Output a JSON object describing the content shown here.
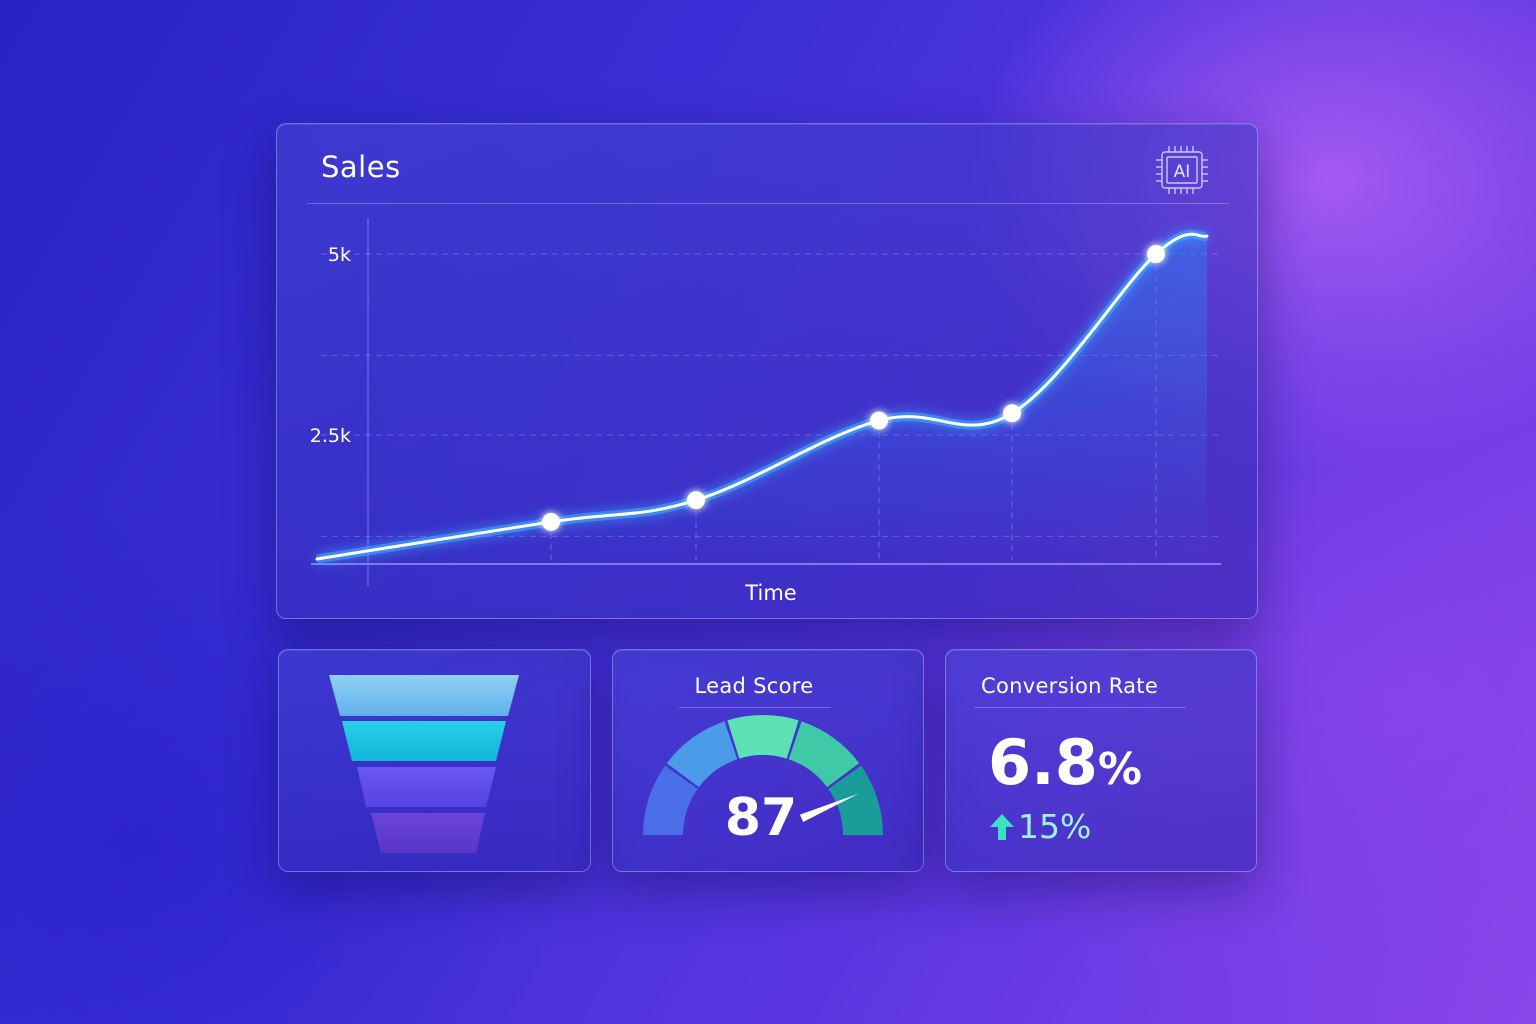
{
  "sales_card": {
    "title": "Sales",
    "badge_label": "AI",
    "badge_icon": "ai-chip-icon"
  },
  "chart_data": {
    "type": "line",
    "title": "Sales",
    "xlabel": "Time",
    "ylabel": "",
    "y_ticks": [
      {
        "value": 5000,
        "label": "5k"
      },
      {
        "value": 2500,
        "label": "2.5k"
      }
    ],
    "ylim": [
      0,
      5000
    ],
    "grid": true,
    "series": [
      {
        "x": [
          1,
          2,
          3,
          4,
          5
        ],
        "values": [
          1300,
          1600,
          2700,
          2800,
          5000
        ]
      }
    ],
    "line_color": "#ffffff",
    "glow_color": "#3fa8ff"
  },
  "funnel_card": {
    "stages": [
      {
        "color_top": "#8fd0f5",
        "color_bottom": "#5fb0ea"
      },
      {
        "color_top": "#2ad0e8",
        "color_bottom": "#12b4d8"
      },
      {
        "color_top": "#6a58f2",
        "color_bottom": "#5643e2"
      },
      {
        "color_top": "#6a45d8",
        "color_bottom": "#5a36c8"
      }
    ]
  },
  "lead_score_card": {
    "title": "Lead Score",
    "value": "87",
    "score": 87,
    "max": 100,
    "segment_colors": [
      "#4a6fe8",
      "#4a9be8",
      "#5ce0b4",
      "#3fc9a6",
      "#1a9c9a"
    ]
  },
  "conversion_card": {
    "title": "Conversion Rate",
    "value": "6.8",
    "unit": "%",
    "change": "15%",
    "change_icon": "arrow-up-icon",
    "change_color": "#3de0c0"
  }
}
